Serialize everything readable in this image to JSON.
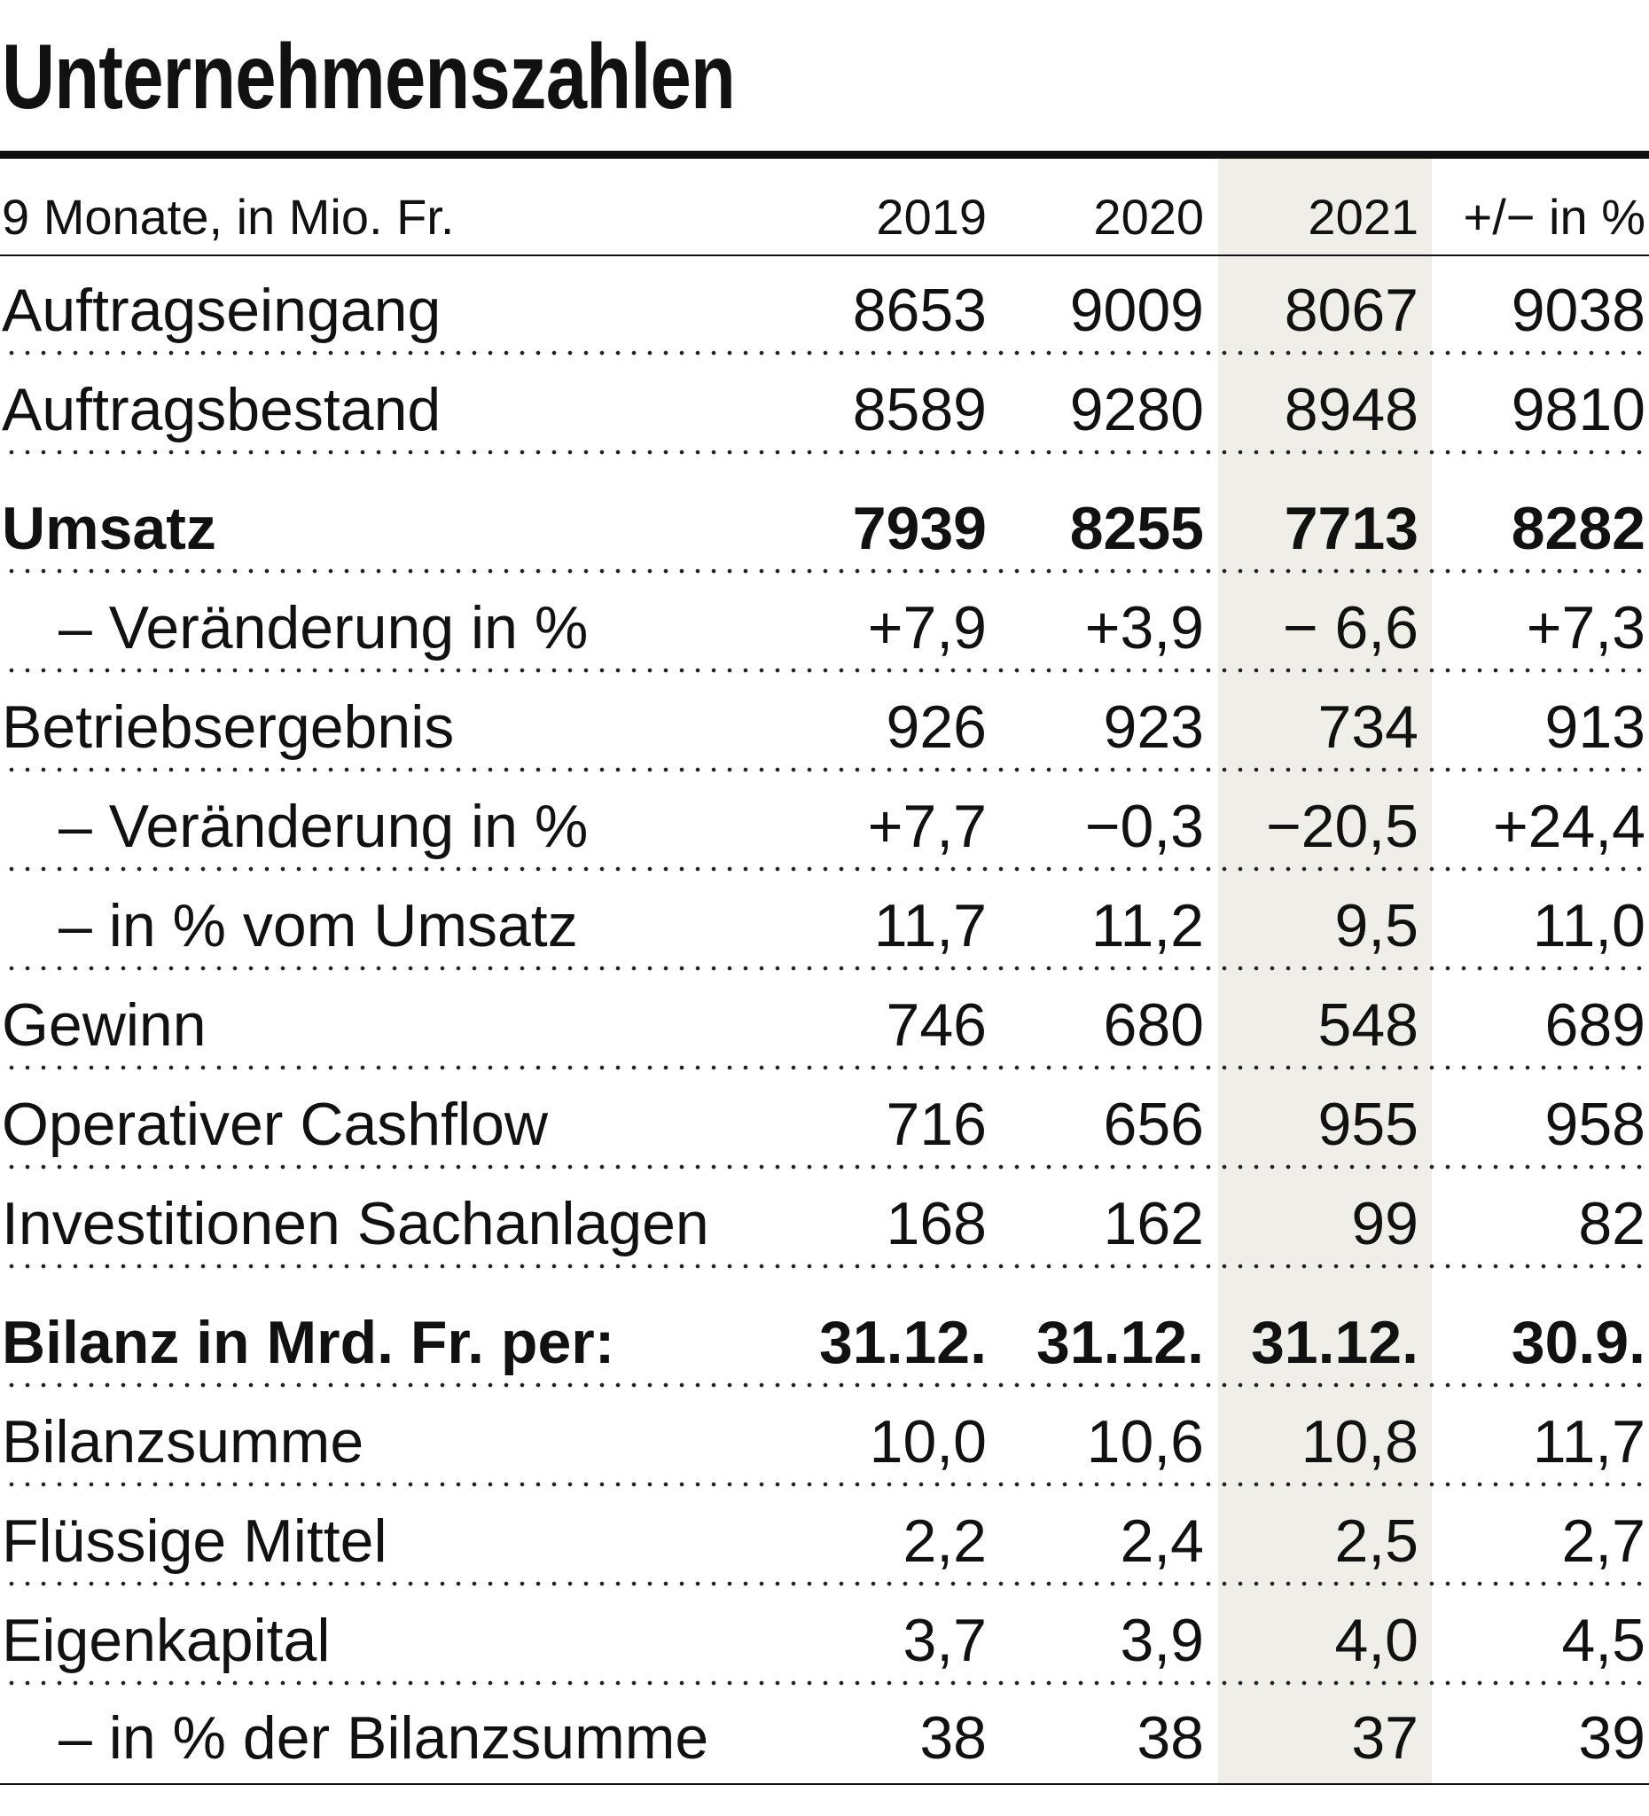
{
  "header": {
    "title": "Unternehmenszahlen"
  },
  "table": {
    "columns": [
      "9 Monate, in Mio. Fr.",
      "2019",
      "2020",
      "2021",
      "+/− in %"
    ],
    "rows": [
      [
        "Auftragseingang",
        "8653",
        "9009",
        "8067",
        "9038"
      ],
      [
        "Auftragsbestand",
        "8589",
        "9280",
        "8948",
        "9810"
      ],
      [
        "Umsatz",
        "7939",
        "8255",
        "7713",
        "8282"
      ],
      [
        "– Veränderung in %",
        "+7,9",
        "+3,9",
        "− 6,6",
        "+7,3"
      ],
      [
        "Betriebsergebnis",
        "926",
        "923",
        "734",
        "913"
      ],
      [
        "– Veränderung in %",
        "+7,7",
        "−0,3",
        "−20,5",
        "+24,4"
      ],
      [
        "– in % vom Umsatz",
        "11,7",
        "11,2",
        "9,5",
        "11,0"
      ],
      [
        "Gewinn",
        "746",
        "680",
        "548",
        "689"
      ],
      [
        "Operativer Cashflow",
        "716",
        "656",
        "955",
        "958"
      ],
      [
        "Investitionen Sachanlagen",
        "168",
        "162",
        "99",
        "82"
      ],
      [
        "Bilanz in Mrd. Fr. per:",
        "31.12.",
        "31.12.",
        "31.12.",
        "30.9."
      ],
      [
        "Bilanzsumme",
        "10,0",
        "10,6",
        "10,8",
        "11,7"
      ],
      [
        "Flüssige Mittel",
        "2,2",
        "2,4",
        "2,5",
        "2,7"
      ],
      [
        "Eigenkapital",
        "3,7",
        "3,9",
        "4,0",
        "4,5"
      ],
      [
        "– in % der Bilanzsumme",
        "38",
        "38",
        "37",
        "39"
      ]
    ]
  }
}
